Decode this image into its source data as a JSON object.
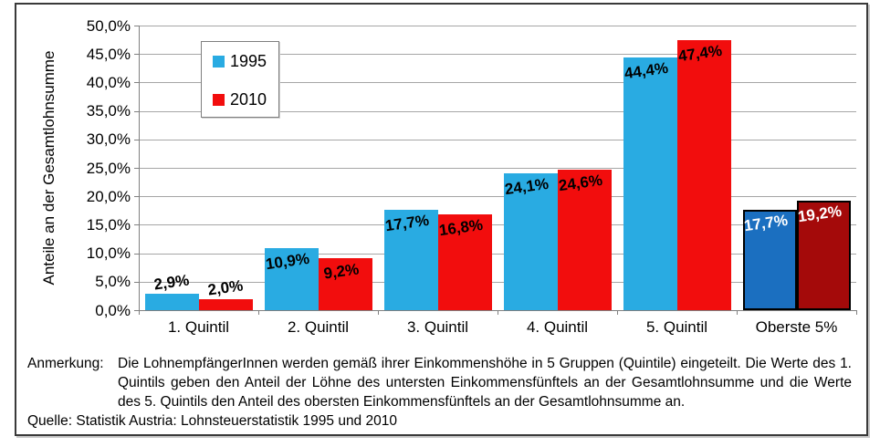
{
  "chart_data": {
    "type": "bar",
    "title": "",
    "xlabel": "",
    "ylabel": "Anteile an der Gesamtlohnsumme",
    "categories": [
      "1. Quintil",
      "2. Quintil",
      "3. Quintil",
      "4. Quintil",
      "5. Quintil",
      "Oberste 5%"
    ],
    "series": [
      {
        "name": "1995",
        "color": "#29ABE2",
        "highlight_color": "#1B6FC0",
        "values": [
          2.9,
          10.9,
          17.7,
          24.1,
          44.4,
          17.7
        ],
        "labels": [
          "2,9%",
          "10,9%",
          "17,7%",
          "24,1%",
          "44,4%",
          "17,7%"
        ]
      },
      {
        "name": "2010",
        "color": "#F20D0D",
        "highlight_color": "#A40A0A",
        "values": [
          2.0,
          9.2,
          16.8,
          24.6,
          47.4,
          19.2
        ],
        "labels": [
          "2,0%",
          "9,2%",
          "16,8%",
          "24,6%",
          "47,4%",
          "19,2%"
        ]
      }
    ],
    "highlight_category_index": 5,
    "ylim": [
      0,
      50
    ],
    "ytick_step": 5,
    "ytick_labels": [
      "0,0%",
      "5,0%",
      "10,0%",
      "15,0%",
      "20,0%",
      "25,0%",
      "30,0%",
      "35,0%",
      "40,0%",
      "45,0%",
      "50,0%"
    ],
    "grid": true,
    "legend_position": "top-left-inside",
    "label_colors": {
      "default": "#000000",
      "highlight": "#ffffff"
    }
  },
  "notes": {
    "anmerkung_label": "Anmerkung:",
    "anmerkung_text": "Die LohnempfängerInnen werden gemäß ihrer Einkommenshöhe in 5 Gruppen (Quintile) eingeteilt. Die Werte des 1. Quintils geben den Anteil der Löhne des untersten Einkommensfünftels an der Gesamtlohnsumme und die Werte des 5. Quintils den Anteil des obersten Einkommensfünftels an der Gesamtlohnsumme an.",
    "quelle": "Quelle: Statistik Austria: Lohnsteuerstatistik 1995 und 2010"
  }
}
